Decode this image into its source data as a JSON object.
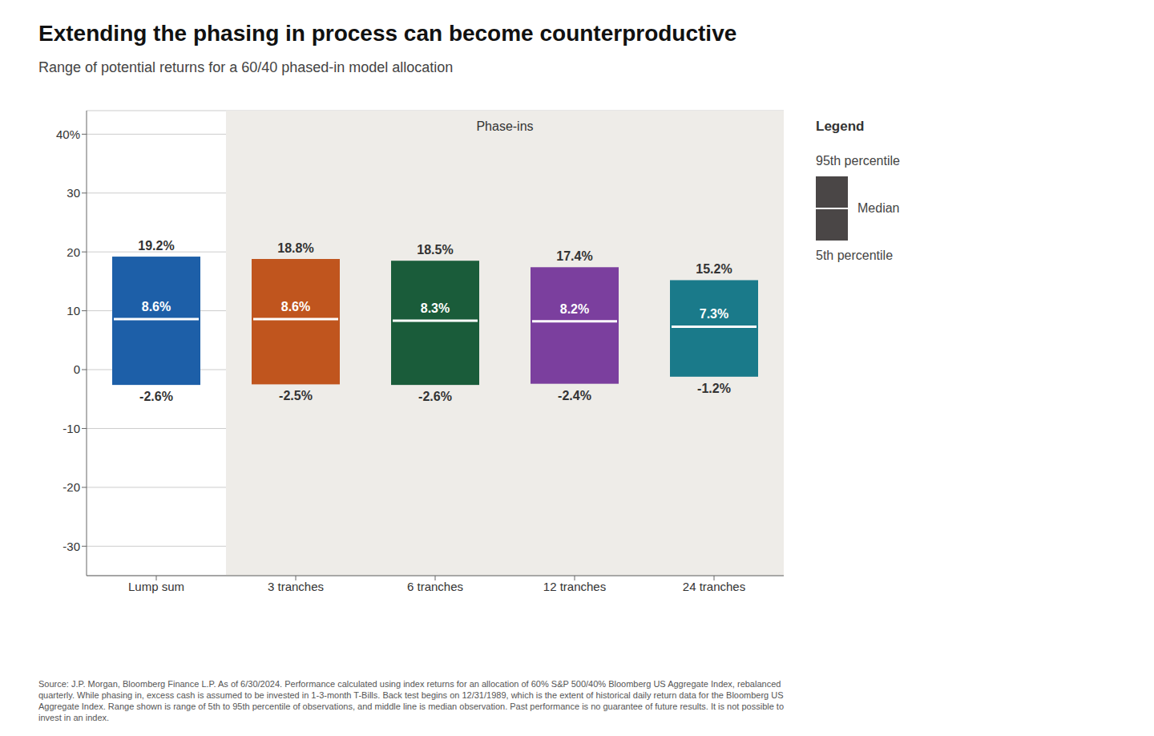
{
  "chart_data": {
    "type": "range_bar",
    "title": "Extending the phasing in process can become counterproductive",
    "subtitle": "Range of potential returns for a 60/40 phased-in model allocation",
    "categories": [
      "Lump sum",
      "3 tranches",
      "6 tranches",
      "12 tranches",
      "24 tranches"
    ],
    "series": [
      {
        "name": "95th percentile",
        "values": [
          19.2,
          18.8,
          18.5,
          17.4,
          15.2
        ],
        "value_labels": [
          "19.2%",
          "18.8%",
          "18.5%",
          "17.4%",
          "15.2%"
        ]
      },
      {
        "name": "Median",
        "color": "#ffffff",
        "values": [
          8.6,
          8.6,
          8.3,
          8.2,
          7.3
        ],
        "value_labels": [
          "8.6%",
          "8.6%",
          "8.3%",
          "8.2%",
          "7.3%"
        ]
      },
      {
        "name": "5th percentile",
        "values": [
          -2.6,
          -2.5,
          -2.6,
          -2.4,
          -1.2
        ],
        "value_labels": [
          "-2.6%",
          "-2.5%",
          "-2.6%",
          "-2.4%",
          "-1.2%"
        ]
      }
    ],
    "colors": [
      "#1d5fa8",
      "#c0551e",
      "#1a5c3a",
      "#7b3f9e",
      "#1a7a8a"
    ],
    "ylim": [
      -35,
      44
    ],
    "yticks": [
      -30,
      -20,
      -10,
      0,
      10,
      20,
      30,
      {
        "value": 40,
        "label": "40%"
      }
    ],
    "grid": true,
    "legend": "right",
    "data_labels": true,
    "annotations": [
      "Phase-ins"
    ],
    "legend_title": "Legend",
    "source": "Source: J.P. Morgan, Bloomberg Finance L.P. As of 6/30/2024. Performance calculated using index returns for an allocation of 60% S&P 500/40% Bloomberg US Aggregate Index, rebalanced\nquarterly. While phasing in, excess cash is assumed to be invested in 1-3-month T-Bills. Back test begins on 12/31/1989, which is the extent of historical daily return data for the Bloomberg US\nAggregate Index. Range shown is range of 5th to 95th percentile of observations, and middle line is median observation. Past performance is no guarantee of future results. It is not possible to\ninvest in an index."
  }
}
